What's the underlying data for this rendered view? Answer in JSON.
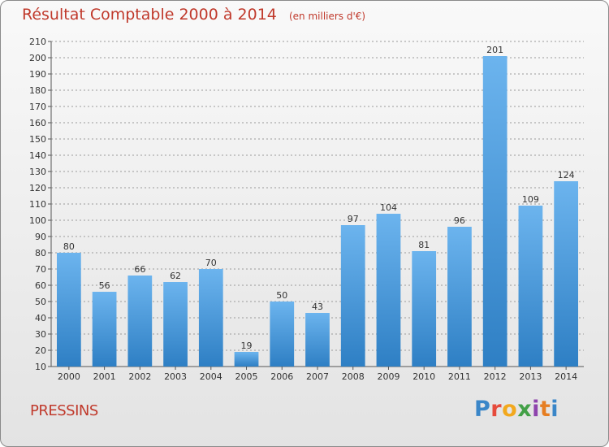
{
  "header": {
    "title": "Résultat Comptable 2000 à 2014",
    "subtitle": "(en milliers d'€)"
  },
  "footer": {
    "commune": "PRESSINS",
    "brand": "Proxiti",
    "brand_colors": [
      "#3a86c8",
      "#e64b3c",
      "#f2a81d",
      "#43a047",
      "#8e44ad",
      "#e67e22",
      "#3a86c8"
    ]
  },
  "colors": {
    "title": "#c0392b",
    "bar_top": "#6cb4ee",
    "bar_bottom": "#2e7fc4",
    "grid": "#9a9a9a"
  },
  "chart_data": {
    "type": "bar",
    "categories": [
      "2000",
      "2001",
      "2002",
      "2003",
      "2004",
      "2005",
      "2006",
      "2007",
      "2008",
      "2009",
      "2010",
      "2011",
      "2012",
      "2013",
      "2014"
    ],
    "values": [
      80,
      56,
      66,
      62,
      70,
      19,
      50,
      43,
      97,
      104,
      81,
      96,
      201,
      109,
      124
    ],
    "ylim": [
      10,
      210
    ],
    "ytick_step": 10,
    "grid": true,
    "xlabel": "",
    "ylabel": ""
  }
}
